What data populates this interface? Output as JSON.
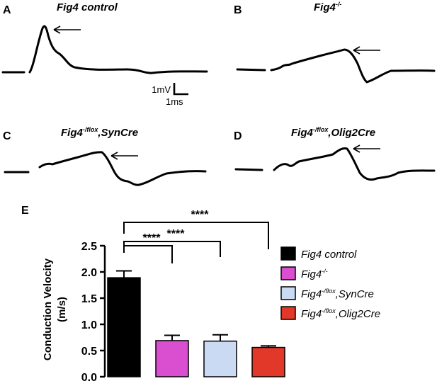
{
  "panels": {
    "A": {
      "letter": "A",
      "title_main": "Fig4",
      "title_rest": " control"
    },
    "B": {
      "letter": "B",
      "title_main": "Fig4",
      "title_sup": "-/-"
    },
    "C": {
      "letter": "C",
      "title_main": "Fig4",
      "title_sup": "-/flox",
      "title_rest": ",SynCre"
    },
    "D": {
      "letter": "D",
      "title_main": "Fig4",
      "title_sup": "-/flox",
      "title_rest": ",Olig2Cre"
    },
    "E": {
      "letter": "E"
    }
  },
  "scale_bar": {
    "voltage": "1mV",
    "time": "1ms"
  },
  "chart_data": {
    "type": "bar",
    "title": "",
    "xlabel": "",
    "ylabel_line1": "Conduction Velocity",
    "ylabel_line2": "(m/s)",
    "ylim": [
      0,
      2.5
    ],
    "yticks": [
      "0.0",
      "0.5",
      "1.0",
      "1.5",
      "2.0",
      "2.5"
    ],
    "legend_position": "right",
    "series": [
      {
        "legend_main": "Fig4",
        "legend_sup": "",
        "legend_rest": " control",
        "value": 1.89,
        "error": 0.13,
        "color": "#000000"
      },
      {
        "legend_main": "Fig4",
        "legend_sup": "-/-",
        "legend_rest": "",
        "value": 0.69,
        "error": 0.1,
        "color": "#d94fd0"
      },
      {
        "legend_main": "Fig4",
        "legend_sup": "-/flox",
        "legend_rest": ",SynCre",
        "value": 0.68,
        "error": 0.12,
        "color": "#c9daf2"
      },
      {
        "legend_main": "Fig4",
        "legend_sup": "-/flox",
        "legend_rest": ",Olig2Cre",
        "value": 0.56,
        "error": 0.03,
        "color": "#e2382a"
      }
    ],
    "significance": [
      {
        "from": 0,
        "to": 1,
        "label": "****"
      },
      {
        "from": 0,
        "to": 2,
        "label": "****"
      },
      {
        "from": 0,
        "to": 3,
        "label": "****"
      }
    ]
  }
}
